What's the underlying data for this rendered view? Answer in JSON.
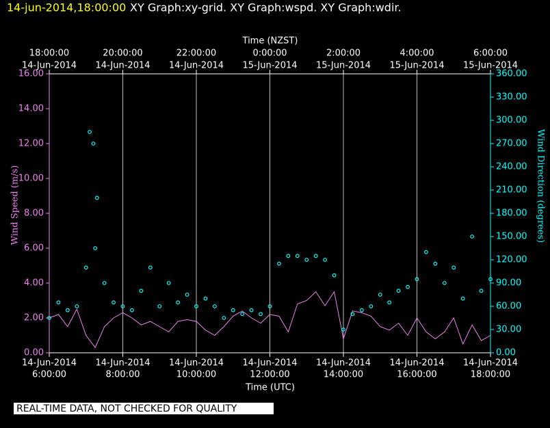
{
  "chart_data": {
    "type": "scatter",
    "title_time": "14-jun-2014,18:00:00",
    "title": "XY Graph:xy-grid.  XY Graph:wspd.  XY Graph:wdir.",
    "x2_label": "Time (NZST)",
    "x_label": "Time (UTC)",
    "y_label": "Wind Speed (m/s)",
    "y2_label": "Wind Direction (degrees)",
    "footer": "REAL-TIME DATA, NOT CHECKED FOR QUALITY",
    "xlim": [
      6,
      18
    ],
    "xticks": [
      {
        "value": 6,
        "label": "6:00:00"
      },
      {
        "value": 8,
        "label": "8:00:00"
      },
      {
        "value": 10,
        "label": "10:00:00"
      },
      {
        "value": 12,
        "label": "12:00:00"
      },
      {
        "value": 14,
        "label": "14:00:00"
      },
      {
        "value": 16,
        "label": "16:00:00"
      },
      {
        "value": 18,
        "label": "18:00:00"
      }
    ],
    "xtick_dates": [
      "14-Jun-2014",
      "14-Jun-2014",
      "14-Jun-2014",
      "14-Jun-2014",
      "14-Jun-2014",
      "14-Jun-2014",
      "14-Jun-2014"
    ],
    "x2ticks": [
      {
        "value": 6,
        "label": "18:00:00"
      },
      {
        "value": 8,
        "label": "20:00:00"
      },
      {
        "value": 10,
        "label": "22:00:00"
      },
      {
        "value": 12,
        "label": "0:00:00"
      },
      {
        "value": 14,
        "label": "2:00:00"
      },
      {
        "value": 16,
        "label": "4:00:00"
      },
      {
        "value": 18,
        "label": "6:00:00"
      }
    ],
    "x2tick_dates": [
      "14-Jun-2014",
      "14-Jun-2014",
      "14-Jun-2014",
      "15-Jun-2014",
      "15-Jun-2014",
      "15-Jun-2014",
      "15-Jun-2014"
    ],
    "ylim": [
      0,
      16
    ],
    "yticks": [
      {
        "value": 0,
        "label": "0.00"
      },
      {
        "value": 2,
        "label": "2.00"
      },
      {
        "value": 4,
        "label": "4.00"
      },
      {
        "value": 6,
        "label": "6.00"
      },
      {
        "value": 8,
        "label": "8.00"
      },
      {
        "value": 10,
        "label": "10.00"
      },
      {
        "value": 12,
        "label": "12.00"
      },
      {
        "value": 14,
        "label": "14.00"
      },
      {
        "value": 16,
        "label": "16.00"
      }
    ],
    "y2lim": [
      0,
      360
    ],
    "y2ticks": [
      {
        "value": 0,
        "label": "0.00"
      },
      {
        "value": 30,
        "label": "30.00"
      },
      {
        "value": 60,
        "label": "60.00"
      },
      {
        "value": 90,
        "label": "90.00"
      },
      {
        "value": 120,
        "label": "120.00"
      },
      {
        "value": 150,
        "label": "150.00"
      },
      {
        "value": 180,
        "label": "180.00"
      },
      {
        "value": 210,
        "label": "210.00"
      },
      {
        "value": 240,
        "label": "240.00"
      },
      {
        "value": 270,
        "label": "270.00"
      },
      {
        "value": 300,
        "label": "300.00"
      },
      {
        "value": 330,
        "label": "330.00"
      },
      {
        "value": 360,
        "label": "360.00"
      }
    ],
    "grid": true,
    "series": [
      {
        "style": "line",
        "color": "#ee82ee",
        "x": [
          6,
          6.25,
          6.5,
          6.75,
          7,
          7.25,
          7.5,
          7.75,
          8,
          8.25,
          8.5,
          8.75,
          9,
          9.25,
          9.5,
          9.75,
          10,
          10.25,
          10.5,
          10.75,
          11,
          11.25,
          11.5,
          11.75,
          12,
          12.25,
          12.5,
          12.75,
          13,
          13.25,
          13.5,
          13.75,
          14,
          14.25,
          14.5,
          14.75,
          15,
          15.25,
          15.5,
          15.75,
          16,
          16.25,
          16.5,
          16.75,
          17,
          17.25,
          17.5,
          17.75,
          18
        ],
        "values": [
          2.0,
          2.2,
          1.5,
          2.5,
          1.0,
          0.3,
          1.5,
          2.0,
          2.3,
          2.0,
          1.6,
          1.8,
          1.5,
          1.2,
          1.8,
          1.9,
          1.8,
          1.3,
          1.0,
          1.5,
          2.1,
          2.4,
          2.0,
          1.7,
          2.2,
          2.1,
          1.2,
          2.8,
          3.0,
          3.5,
          2.7,
          3.5,
          0.8,
          2.4,
          2.3,
          2.1,
          1.5,
          1.3,
          1.7,
          1.0,
          2.0,
          1.2,
          0.8,
          1.2,
          2.0,
          0.5,
          1.6,
          0.7,
          1.0
        ]
      },
      {
        "style": "points",
        "color": "#00ffff",
        "axis": "y2",
        "x": [
          6,
          6.25,
          6.5,
          6.75,
          7,
          7.1,
          7.2,
          7.25,
          7.3,
          7.5,
          7.75,
          8,
          8.25,
          8.5,
          8.75,
          9,
          9.25,
          9.5,
          9.75,
          10,
          10.25,
          10.5,
          10.75,
          11,
          11.25,
          11.5,
          11.75,
          12,
          12.25,
          12.5,
          12.75,
          13,
          13.25,
          13.5,
          13.75,
          14,
          14.25,
          14.5,
          14.75,
          15,
          15.25,
          15.5,
          15.75,
          16,
          16.25,
          16.5,
          16.75,
          17,
          17.25,
          17.5,
          17.75,
          18
        ],
        "values": [
          45,
          65,
          55,
          60,
          110,
          285,
          270,
          135,
          200,
          90,
          65,
          60,
          55,
          80,
          110,
          60,
          90,
          65,
          75,
          60,
          70,
          60,
          45,
          55,
          50,
          55,
          50,
          60,
          115,
          125,
          125,
          120,
          125,
          120,
          100,
          30,
          50,
          55,
          60,
          75,
          65,
          80,
          85,
          95,
          130,
          115,
          90,
          110,
          70,
          150,
          80,
          95
        ]
      }
    ]
  }
}
